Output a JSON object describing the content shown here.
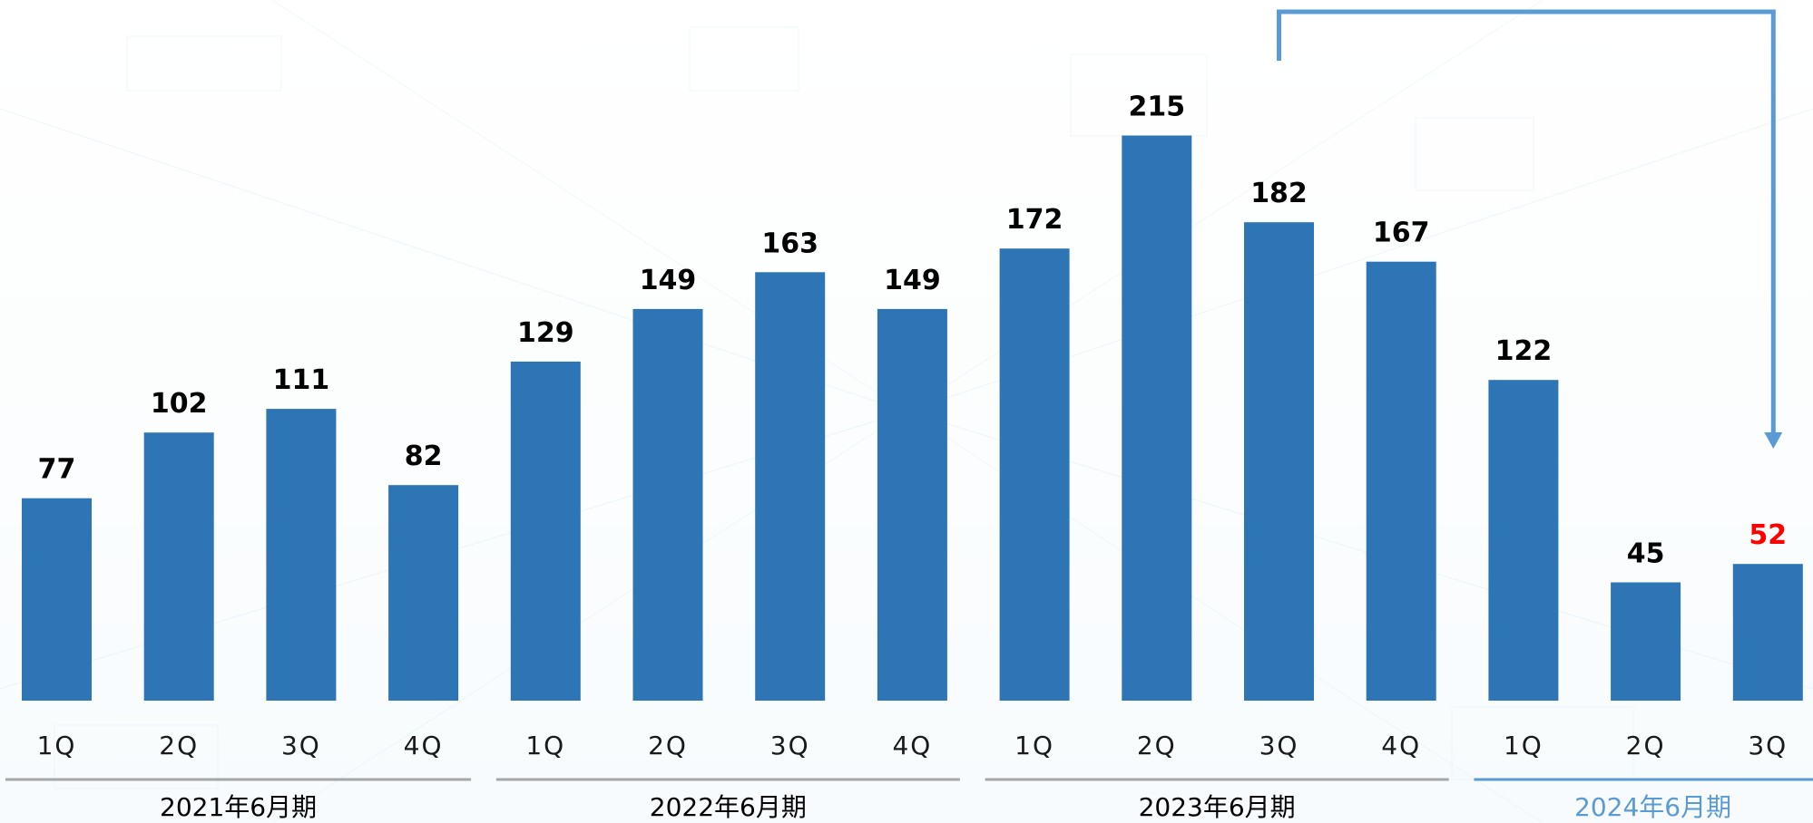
{
  "colors": {
    "bar": "#2e75b6",
    "highlight_value": "#ff0000",
    "arrow": "#5b9bd5",
    "period_line": "#a6a6a6",
    "period_line_highlight": "#5b9bd5",
    "period_label_highlight": "#5b9bd5",
    "text": "#000000",
    "tick_text": "#1a1a1a"
  },
  "chart_data": {
    "type": "bar",
    "categories": [
      "1Q",
      "2Q",
      "3Q",
      "4Q",
      "1Q",
      "2Q",
      "3Q",
      "4Q",
      "1Q",
      "2Q",
      "3Q",
      "4Q",
      "1Q",
      "2Q",
      "3Q"
    ],
    "values": [
      77,
      102,
      111,
      82,
      129,
      149,
      163,
      149,
      172,
      215,
      182,
      167,
      122,
      45,
      52
    ],
    "value_labels": [
      "77",
      "102",
      "111",
      "82",
      "129",
      "149",
      "163",
      "149",
      "172",
      "215",
      "182",
      "167",
      "122",
      "45",
      "52"
    ],
    "highlighted_index": 14,
    "ylim": [
      0,
      225
    ],
    "groups": [
      {
        "label": "2021年6月期",
        "start": 0,
        "end": 3,
        "highlight": false
      },
      {
        "label": "2022年6月期",
        "start": 4,
        "end": 7,
        "highlight": false
      },
      {
        "label": "2023年6月期",
        "start": 8,
        "end": 11,
        "highlight": false
      },
      {
        "label": "2024年6月期",
        "start": 12,
        "end": 14,
        "highlight": true
      }
    ],
    "comparison_arrow": {
      "from_index": 10,
      "to_index": 14
    },
    "title": "",
    "xlabel": "",
    "ylabel": "",
    "grid": false,
    "legend": "none"
  }
}
